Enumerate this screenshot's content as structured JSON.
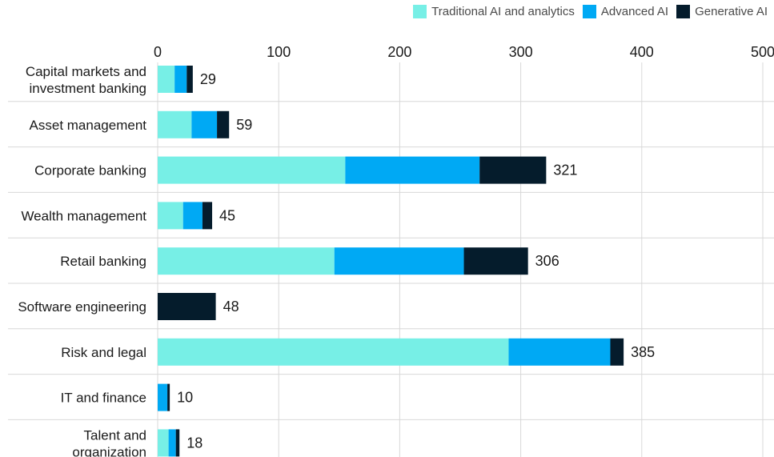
{
  "colors": {
    "traditional": "#77efe6",
    "advanced": "#00a9f4",
    "generative": "#051c2c",
    "grid": "#d8d8d8",
    "separator": "#d8d8d8"
  },
  "legend": [
    {
      "key": "traditional",
      "label": "Traditional AI and analytics"
    },
    {
      "key": "advanced",
      "label": "Advanced AI"
    },
    {
      "key": "generative",
      "label": "Generative  AI"
    }
  ],
  "chart_data": {
    "type": "bar",
    "orientation": "horizontal",
    "stacked": true,
    "xlim": [
      0,
      500
    ],
    "ticks": [
      0,
      100,
      200,
      300,
      400,
      500
    ],
    "tick_labels": [
      "0",
      "100",
      "200",
      "300",
      "400",
      "500"
    ],
    "grid": true,
    "legend_position": "top-right",
    "categories": [
      [
        "Capital markets and",
        "investment banking"
      ],
      [
        "Asset management"
      ],
      [
        "Corporate banking"
      ],
      [
        "Wealth management"
      ],
      [
        "Retail banking"
      ],
      [
        "Software engineering"
      ],
      [
        "Risk and legal"
      ],
      [
        "IT and finance"
      ],
      [
        "Talent and",
        "organization"
      ]
    ],
    "series": [
      {
        "name": "Traditional AI and analytics",
        "key": "traditional",
        "values": [
          14,
          28,
          155,
          21,
          146,
          0,
          290,
          0,
          9
        ]
      },
      {
        "name": "Advanced AI",
        "key": "advanced",
        "values": [
          10,
          21,
          111,
          16,
          107,
          0,
          84,
          8,
          6
        ]
      },
      {
        "name": "Generative  AI",
        "key": "generative",
        "values": [
          5,
          10,
          55,
          8,
          53,
          48,
          11,
          2,
          3
        ]
      }
    ],
    "totals": [
      "29",
      "59",
      "321",
      "45",
      "306",
      "48",
      "385",
      "10",
      "18"
    ]
  }
}
